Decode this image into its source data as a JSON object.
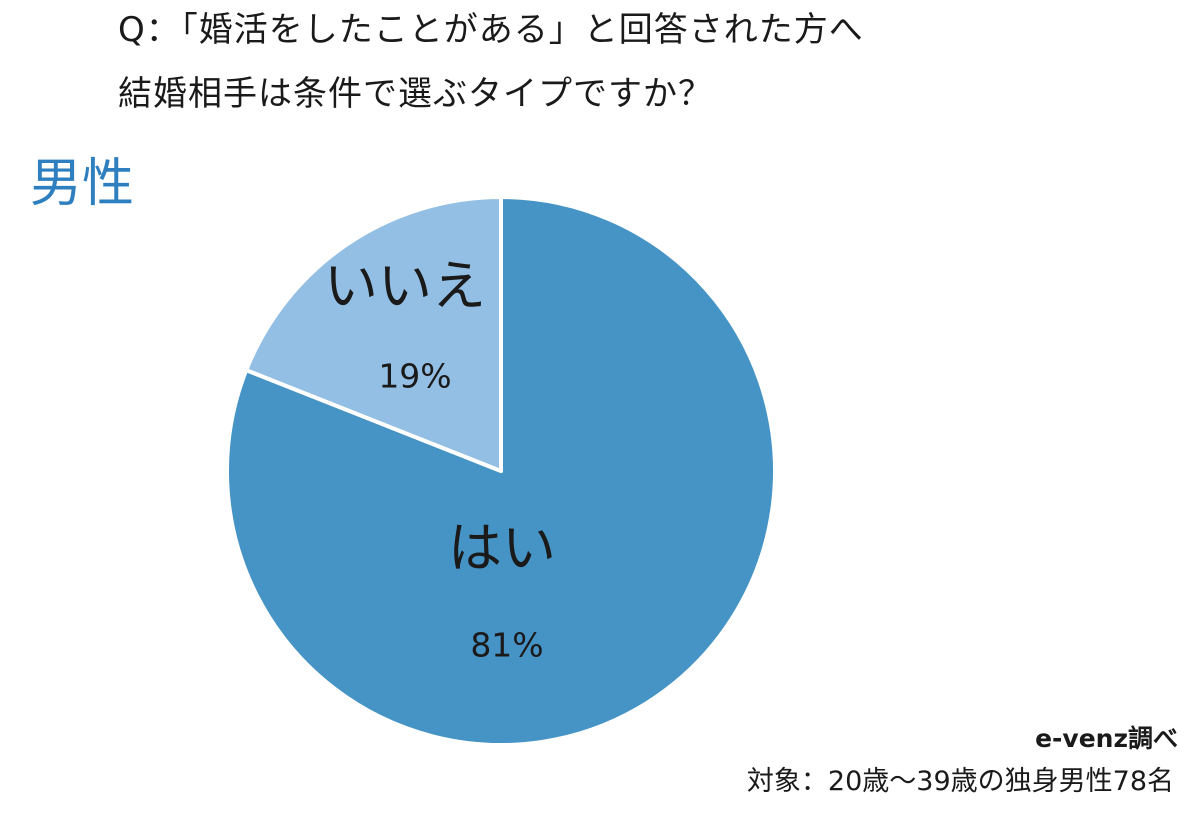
{
  "question": {
    "line1": "Q：「婚活をしたことがある」と回答された方へ",
    "line2": "結婚相手は条件で選ぶタイプですか？"
  },
  "group_label": "男性",
  "chart_data": {
    "type": "pie",
    "title": "",
    "slices": [
      {
        "label": "はい",
        "value": 81,
        "value_label": "81%",
        "color": "#4694c5"
      },
      {
        "label": "いいえ",
        "value": 19,
        "value_label": "19%",
        "color": "#93bfe4"
      }
    ],
    "start": "12 o'clock",
    "direction": "clockwise",
    "legend": "none",
    "label_color": "#1a1a1a",
    "separator_color": "#ffffff"
  },
  "footer": {
    "source": "e-venz調べ",
    "target": "対象：20歳〜39歳の独身男性78名"
  }
}
